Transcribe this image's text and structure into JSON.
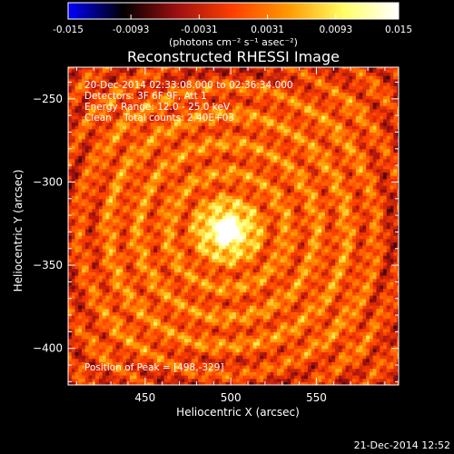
{
  "chart_data": {
    "type": "heatmap",
    "title": "Reconstructed RHESSI Image",
    "xlabel": "Heliocentric X (arcsec)",
    "ylabel": "Heliocentric Y (arcsec)",
    "xlim": [
      405,
      598
    ],
    "ylim": [
      -422,
      -231
    ],
    "x_ticks": [
      450,
      500,
      550
    ],
    "y_ticks": [
      -250,
      -300,
      -350,
      -400
    ],
    "colorbar": {
      "label": "(photons cm⁻² s⁻¹ asec⁻²)",
      "range": [
        -0.015,
        0.015
      ],
      "tick_labels": [
        "-0.015",
        "-0.0093",
        "-0.0031",
        "0.0031",
        "0.0093",
        "0.015"
      ],
      "tick_values": [
        -0.015,
        -0.0093,
        -0.0031,
        0.0031,
        0.0093,
        0.015
      ],
      "colors": [
        "#0000ff",
        "#000000",
        "#a01010",
        "#ff4000",
        "#ff9900",
        "#ffff66",
        "#ffffff"
      ]
    },
    "info_lines": [
      "20-Dec-2014 02:33:08.000 to 02:36:34.000",
      "Detectors: 3F 6F 9F, Att 1",
      "Energy Range: 12.0 - 25.0 keV",
      "Clean    Total counts: 2.40E+03"
    ],
    "peak_text": "Position of Peak = [498,-329]",
    "peak": [
      498,
      -329
    ],
    "timestamp": "21-Dec-2014 12:52"
  }
}
